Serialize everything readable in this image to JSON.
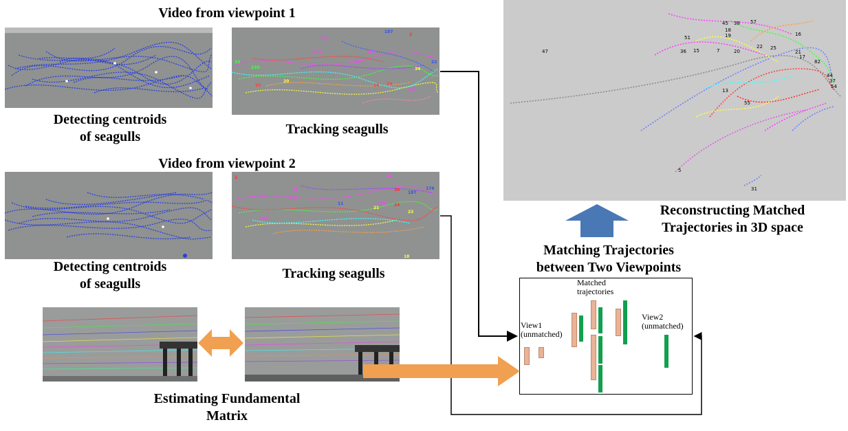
{
  "viewpoint1": {
    "title": "Video from viewpoint 1",
    "detect_label": "Detecting centroids\nof seagulls",
    "track_label": "Tracking seagulls",
    "track_ids": [
      "187",
      "2",
      "215",
      "129",
      "173",
      "33",
      "230",
      "58",
      "55",
      "24",
      "14",
      "34",
      "20",
      "93",
      "22"
    ]
  },
  "viewpoint2": {
    "title": "Video from viewpoint 2",
    "detect_label": "Detecting centroids\nof seagulls",
    "track_label": "Tracking seagulls",
    "track_ids": [
      "2",
      "62",
      "63",
      "193",
      "71",
      "187",
      "176",
      "11",
      "34",
      "24",
      "194",
      "21",
      "23",
      "195",
      "18"
    ]
  },
  "fundamental": {
    "label": "Estimating Fundamental\nMatrix"
  },
  "matching": {
    "title": "Matching Trajectories\nbetween Two Viewpoints",
    "view1_label": "View1\n(unmatched)",
    "view2_label": "View2\n(unmatched)",
    "matched_label": "Matched\ntrajectories",
    "colors": {
      "view1": "#e8b397",
      "view2": "#12a04e"
    }
  },
  "reconstruction": {
    "title": "Reconstructing Matched\nTrajectories in 3D space",
    "point_ids": [
      "47",
      "51",
      "45",
      "38",
      "57",
      "16",
      "18",
      "19",
      "36",
      "15",
      "7",
      "20",
      "21",
      "17",
      "82",
      "44",
      "37",
      "54",
      "13",
      "55",
      "5",
      "31",
      "22",
      "25"
    ]
  },
  "colors": {
    "arrow_blue": "#4a78b5",
    "arrow_orange": "#f0a050",
    "connector": "#000000"
  }
}
